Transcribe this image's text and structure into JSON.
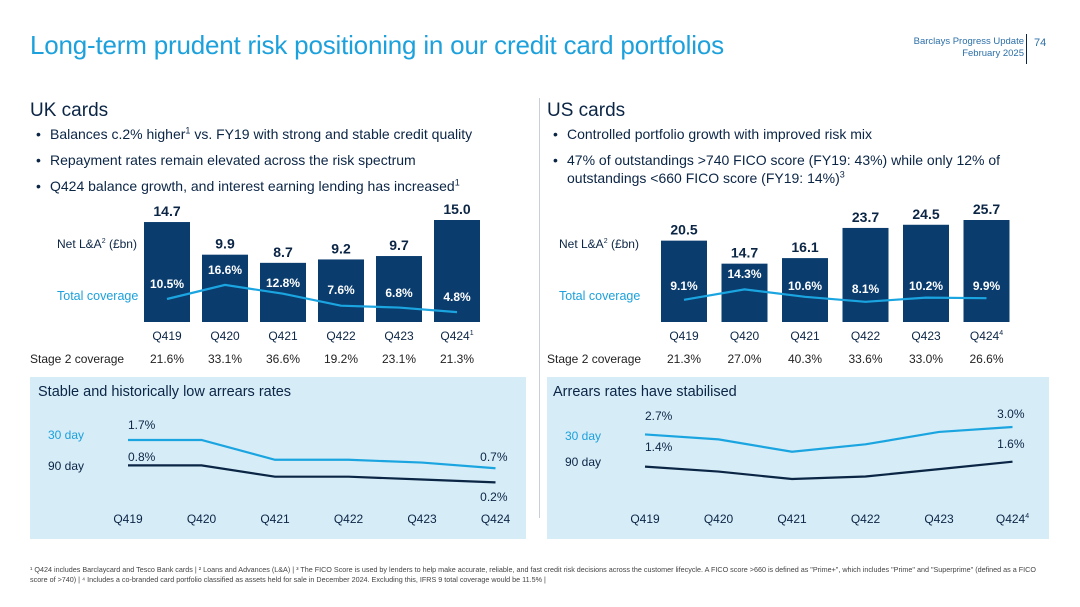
{
  "header": {
    "title": "Long-term prudent risk positioning in our credit card portfolios",
    "doc_title": "Barclays Progress Update",
    "doc_date": "February 2025",
    "page_number": "74"
  },
  "colors": {
    "bar": "#0a3c6e",
    "coverage_line": "#1ba5e0",
    "accent": "#1da1dc",
    "panel": "#d6ecf7",
    "dark": "#0b2545"
  },
  "uk": {
    "heading": "UK cards",
    "bullets": [
      {
        "text": "Balances c.2% higher",
        "sup": "1",
        "rest": " vs. FY19 with strong and stable credit quality"
      },
      {
        "text": "Repayment rates remain elevated across the risk spectrum",
        "sup": "",
        "rest": ""
      },
      {
        "text": "Q424 balance growth, and interest earning lending has increased",
        "sup": "1",
        "rest": ""
      }
    ]
  },
  "us": {
    "heading": "US cards",
    "bullets": [
      {
        "text": "Controlled portfolio growth with improved risk mix",
        "sup": "",
        "rest": ""
      },
      {
        "text": "47% of outstandings >740 FICO score (FY19: 43%) while only 12% of outstandings <660 FICO score (FY19: 14%)",
        "sup": "3",
        "rest": ""
      }
    ]
  },
  "chart_data": [
    {
      "id": "uk-balances",
      "type": "bar",
      "categories": [
        "Q419",
        "Q420",
        "Q421",
        "Q422",
        "Q423",
        "Q424"
      ],
      "category_sups": [
        "",
        "",
        "",
        "",
        "",
        "1"
      ],
      "values": [
        14.7,
        9.9,
        8.7,
        9.2,
        9.7,
        15.0
      ],
      "value_labels": [
        "14.7",
        "9.9",
        "8.7",
        "9.2",
        "9.7",
        "15.0"
      ],
      "ylabel": "Net L&A",
      "ylabel_sup": "2",
      "ylabel_unit": " (£bn)",
      "coverage_label": "Total coverage",
      "coverage": [
        10.5,
        16.6,
        12.8,
        7.6,
        6.8,
        4.8
      ],
      "coverage_labels": [
        "10.5%",
        "16.6%",
        "12.8%",
        "7.6%",
        "6.8%",
        "4.8%"
      ],
      "stage2_label": "Stage 2 coverage",
      "stage2": [
        "21.6%",
        "33.1%",
        "36.6%",
        "19.2%",
        "23.1%",
        "21.3%"
      ]
    },
    {
      "id": "us-balances",
      "type": "bar",
      "categories": [
        "Q419",
        "Q420",
        "Q421",
        "Q422",
        "Q423",
        "Q424"
      ],
      "category_sups": [
        "",
        "",
        "",
        "",
        "",
        "4"
      ],
      "values": [
        20.5,
        14.7,
        16.1,
        23.7,
        24.5,
        25.7
      ],
      "value_labels": [
        "20.5",
        "14.7",
        "16.1",
        "23.7",
        "24.5",
        "25.7"
      ],
      "ylabel": "Net L&A",
      "ylabel_sup": "2",
      "ylabel_unit": " (£bn)",
      "coverage_label": "Total coverage",
      "coverage": [
        9.1,
        14.3,
        10.6,
        8.1,
        10.2,
        9.9
      ],
      "coverage_labels": [
        "9.1%",
        "14.3%",
        "10.6%",
        "8.1%",
        "10.2%",
        "9.9%"
      ],
      "stage2_label": "Stage 2 coverage",
      "stage2": [
        "21.3%",
        "27.0%",
        "40.3%",
        "33.6%",
        "33.0%",
        "26.6%"
      ]
    },
    {
      "id": "uk-arrears",
      "type": "line",
      "title": "Stable and historically low arrears rates",
      "categories": [
        "Q419",
        "Q420",
        "Q421",
        "Q422",
        "Q423",
        "Q424"
      ],
      "category_sups": [
        "",
        "",
        "",
        "",
        "",
        ""
      ],
      "series": [
        {
          "name": "30 day",
          "values": [
            1.7,
            1.7,
            1.0,
            1.0,
            0.9,
            0.7
          ],
          "start_label": "1.7%",
          "end_label": "0.7%"
        },
        {
          "name": "90 day",
          "values": [
            0.8,
            0.8,
            0.4,
            0.4,
            0.3,
            0.2
          ],
          "start_label": "0.8%",
          "end_label": "0.2%"
        }
      ]
    },
    {
      "id": "us-arrears",
      "type": "line",
      "title": "Arrears rates have stabilised",
      "categories": [
        "Q419",
        "Q420",
        "Q421",
        "Q422",
        "Q423",
        "Q424"
      ],
      "category_sups": [
        "",
        "",
        "",
        "",
        "",
        "4"
      ],
      "series": [
        {
          "name": "30 day",
          "values": [
            2.7,
            2.5,
            2.0,
            2.3,
            2.8,
            3.0
          ],
          "start_label": "2.7%",
          "end_label": "3.0%"
        },
        {
          "name": "90 day",
          "values": [
            1.4,
            1.2,
            0.9,
            1.0,
            1.3,
            1.6
          ],
          "start_label": "1.4%",
          "end_label": "1.6%"
        }
      ]
    }
  ],
  "footnote": "¹ Q424 includes Barclaycard and Tesco Bank cards | ² Loans and Advances (L&A) | ³ The FICO Score is used by lenders to help make accurate, reliable, and fast credit risk decisions across the customer lifecycle. A FICO score >660 is defined as \"Prime+\", which includes \"Prime\" and \"Superprime\" (defined as a FICO score of >740) | ⁴ Includes a co-branded card portfolio classified as assets held for sale in December 2024. Excluding this, IFRS 9 total coverage would be 11.5% |"
}
